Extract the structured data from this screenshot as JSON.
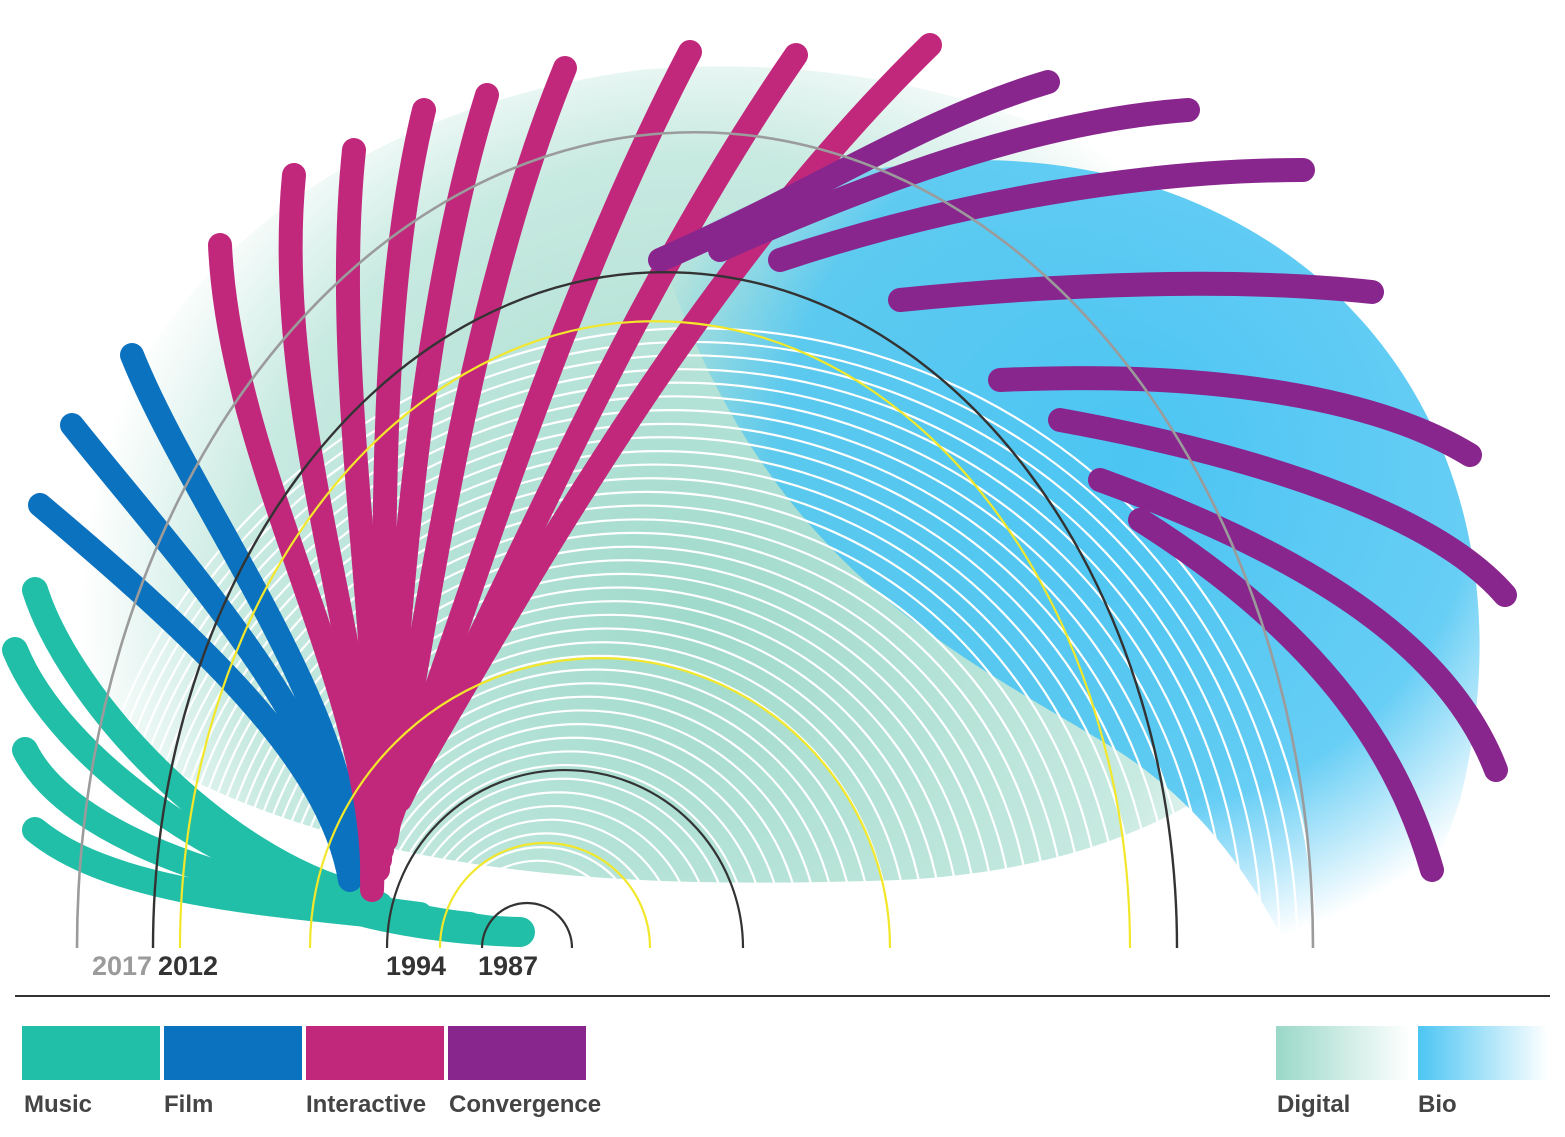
{
  "year_labels": [
    {
      "text": "2017",
      "color": "#9b9b9b"
    },
    {
      "text": "2012",
      "color": "#333333"
    },
    {
      "text": "1994",
      "color": "#333333"
    },
    {
      "text": "1987",
      "color": "#333333"
    }
  ],
  "categories": [
    {
      "key": "music",
      "label": "Music",
      "color": "#22bfa8"
    },
    {
      "key": "film",
      "label": "Film",
      "color": "#0b72bf"
    },
    {
      "key": "interactive",
      "label": "Interactive",
      "color": "#c1287c"
    },
    {
      "key": "convergence",
      "label": "Convergence",
      "color": "#88268e"
    }
  ],
  "domains": [
    {
      "key": "digital",
      "label": "Digital",
      "color": "#9ad8c8"
    },
    {
      "key": "bio",
      "label": "Bio",
      "color": "#4cc5f3"
    }
  ],
  "colors": {
    "ring_white": "#ffffff",
    "ring_yellow": "#f2e72a",
    "ring_dark": "#333333",
    "ring_gray": "#9b9b9b",
    "axis_line": "#333333"
  }
}
